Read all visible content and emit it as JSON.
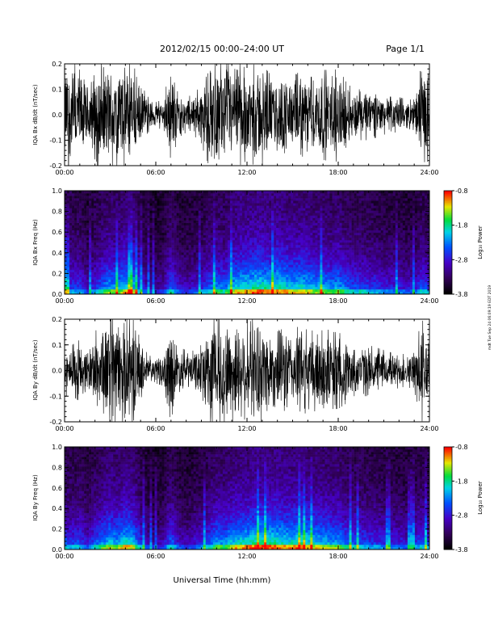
{
  "header": {
    "title": "2012/02/15  00:00–24:00 UT",
    "page": "Page 1/1"
  },
  "side_stamp": "mdt Tue Sep 24 06:09:19 EDT 2019",
  "footer": {
    "xlabel": "Universal Time (hh:mm)"
  },
  "colors": {
    "trace": "#000000",
    "background": "#ffffff"
  },
  "chart_data": [
    {
      "type": "line",
      "id": "bx-waveform",
      "ylabel": "IQA Bx dB/dt (nT/sec)",
      "ylim": [
        -0.2,
        0.2
      ],
      "yticks": [
        "-0.2",
        "-0.1",
        "0.0",
        "0.1",
        "0.2"
      ],
      "xlim": [
        "00:00",
        "24:00"
      ],
      "xticks": [
        "00:00",
        "06:00",
        "12:00",
        "18:00",
        "24:00"
      ],
      "series": [
        {
          "x_hours": [
            0,
            0.5,
            1,
            1.5,
            2,
            2.5,
            3,
            3.5,
            4,
            4.5,
            5,
            5.5,
            6,
            6.5,
            7,
            7.5,
            8,
            8.5,
            9,
            9.5,
            10,
            10.5,
            11,
            11.5,
            12,
            12.5,
            13,
            13.5,
            14,
            14.5,
            15,
            15.5,
            16,
            16.5,
            17,
            17.5,
            18,
            18.5,
            19,
            19.5,
            20,
            20.5,
            21,
            21.5,
            22,
            22.5,
            23,
            23.5,
            24
          ],
          "envelope": [
            0.2,
            0.2,
            0.2,
            0.12,
            0.2,
            0.2,
            0.2,
            0.2,
            0.2,
            0.2,
            0.12,
            0.07,
            0.05,
            0.06,
            0.2,
            0.09,
            0.07,
            0.08,
            0.12,
            0.2,
            0.2,
            0.2,
            0.2,
            0.2,
            0.18,
            0.2,
            0.2,
            0.16,
            0.14,
            0.18,
            0.13,
            0.2,
            0.14,
            0.16,
            0.2,
            0.14,
            0.2,
            0.13,
            0.1,
            0.1,
            0.1,
            0.09,
            0.08,
            0.07,
            0.07,
            0.06,
            0.06,
            0.2,
            0.18
          ]
        }
      ]
    },
    {
      "type": "heatmap",
      "id": "bx-spectrogram",
      "ylabel": "IQA Bx Freq (Hz)",
      "ylim": [
        0.0,
        1.0
      ],
      "yticks": [
        "0.0",
        "0.2",
        "0.4",
        "0.6",
        "0.8",
        "1.0"
      ],
      "xlim": [
        "00:00",
        "24:00"
      ],
      "xticks": [
        "00:00",
        "06:00",
        "12:00",
        "18:00",
        "24:00"
      ],
      "colorbar": {
        "label": "Log₁₀ Power",
        "range": [
          -3.8,
          -0.8
        ],
        "ticks": [
          "-0.8",
          "-1.8",
          "-2.8",
          "-3.8"
        ]
      },
      "activity_hours": [
        0,
        0.5,
        1,
        1.5,
        2,
        2.5,
        3,
        3.5,
        4,
        4.5,
        5,
        5.5,
        6,
        6.5,
        7,
        7.5,
        8,
        8.5,
        9,
        9.5,
        10,
        10.5,
        11,
        11.5,
        12,
        12.5,
        13,
        13.5,
        14,
        14.5,
        15,
        15.5,
        16,
        16.5,
        17,
        17.5,
        18,
        18.5,
        19,
        19.5,
        20,
        20.5,
        21,
        21.5,
        22,
        22.5,
        23,
        23.5,
        24
      ],
      "activity": [
        0.6,
        0.5,
        0.5,
        0.35,
        0.5,
        0.6,
        0.7,
        0.65,
        0.8,
        0.75,
        0.5,
        0.35,
        0.3,
        0.35,
        0.6,
        0.4,
        0.35,
        0.4,
        0.45,
        0.55,
        0.65,
        0.6,
        0.75,
        0.8,
        0.8,
        0.85,
        0.85,
        0.8,
        0.85,
        0.8,
        0.75,
        0.8,
        0.75,
        0.7,
        0.7,
        0.65,
        0.7,
        0.6,
        0.55,
        0.55,
        0.5,
        0.5,
        0.45,
        0.45,
        0.45,
        0.4,
        0.4,
        0.55,
        0.5
      ]
    },
    {
      "type": "line",
      "id": "by-waveform",
      "ylabel": "IQA By dB/dt (nT/sec)",
      "ylim": [
        -0.2,
        0.2
      ],
      "yticks": [
        "-0.2",
        "-0.1",
        "0.0",
        "0.1",
        "0.2"
      ],
      "xlim": [
        "00:00",
        "24:00"
      ],
      "xticks": [
        "00:00",
        "06:00",
        "12:00",
        "18:00",
        "24:00"
      ],
      "series": [
        {
          "x_hours": [
            0,
            0.5,
            1,
            1.5,
            2,
            2.5,
            3,
            3.5,
            4,
            4.5,
            5,
            5.5,
            6,
            6.5,
            7,
            7.5,
            8,
            8.5,
            9,
            9.5,
            10,
            10.5,
            11,
            11.5,
            12,
            12.5,
            13,
            13.5,
            14,
            14.5,
            15,
            15.5,
            16,
            16.5,
            17,
            17.5,
            18,
            18.5,
            19,
            19.5,
            20,
            20.5,
            21,
            21.5,
            22,
            22.5,
            23,
            23.5,
            24
          ],
          "envelope": [
            0.1,
            0.1,
            0.12,
            0.08,
            0.15,
            0.2,
            0.2,
            0.2,
            0.2,
            0.2,
            0.12,
            0.06,
            0.05,
            0.06,
            0.2,
            0.09,
            0.08,
            0.08,
            0.1,
            0.2,
            0.2,
            0.2,
            0.2,
            0.2,
            0.2,
            0.2,
            0.2,
            0.18,
            0.15,
            0.2,
            0.14,
            0.2,
            0.15,
            0.16,
            0.2,
            0.15,
            0.15,
            0.13,
            0.1,
            0.1,
            0.1,
            0.09,
            0.08,
            0.07,
            0.07,
            0.06,
            0.08,
            0.2,
            0.15
          ]
        }
      ]
    },
    {
      "type": "heatmap",
      "id": "by-spectrogram",
      "ylabel": "IQA By Freq (Hz)",
      "ylim": [
        0.0,
        1.0
      ],
      "yticks": [
        "0.0",
        "0.2",
        "0.4",
        "0.6",
        "0.8",
        "1.0"
      ],
      "xlim": [
        "00:00",
        "24:00"
      ],
      "xticks": [
        "00:00",
        "06:00",
        "12:00",
        "18:00",
        "24:00"
      ],
      "colorbar": {
        "label": "Log₁₀ Power",
        "range": [
          -3.8,
          -0.8
        ],
        "ticks": [
          "-0.8",
          "-1.8",
          "-2.8",
          "-3.8"
        ]
      },
      "activity_hours": [
        0,
        0.5,
        1,
        1.5,
        2,
        2.5,
        3,
        3.5,
        4,
        4.5,
        5,
        5.5,
        6,
        6.5,
        7,
        7.5,
        8,
        8.5,
        9,
        9.5,
        10,
        10.5,
        11,
        11.5,
        12,
        12.5,
        13,
        13.5,
        14,
        14.5,
        15,
        15.5,
        16,
        16.5,
        17,
        17.5,
        18,
        18.5,
        19,
        19.5,
        20,
        20.5,
        21,
        21.5,
        22,
        22.5,
        23,
        23.5,
        24
      ],
      "activity": [
        0.55,
        0.5,
        0.55,
        0.4,
        0.55,
        0.65,
        0.75,
        0.7,
        0.8,
        0.75,
        0.5,
        0.35,
        0.3,
        0.35,
        0.6,
        0.4,
        0.35,
        0.4,
        0.45,
        0.55,
        0.7,
        0.65,
        0.75,
        0.8,
        0.8,
        0.85,
        0.85,
        0.85,
        0.85,
        0.8,
        0.8,
        0.85,
        0.8,
        0.75,
        0.75,
        0.7,
        0.7,
        0.6,
        0.55,
        0.55,
        0.5,
        0.5,
        0.45,
        0.45,
        0.45,
        0.4,
        0.45,
        0.55,
        0.5
      ]
    }
  ]
}
